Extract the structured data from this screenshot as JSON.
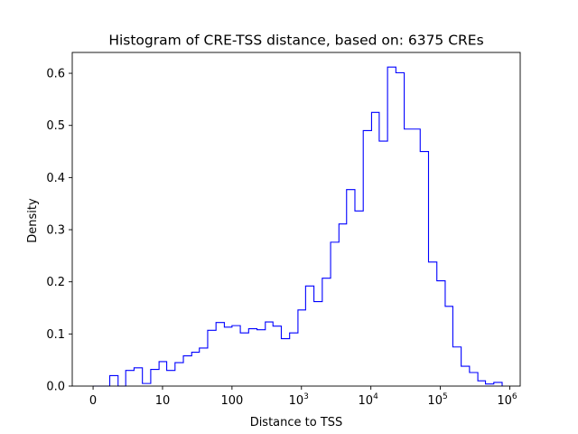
{
  "chart_data": {
    "type": "histogram",
    "title": "Histogram of CRE-TSS distance, based on: 6375 CREs",
    "xlabel": "Distance to TSS",
    "ylabel": "Density",
    "x_scale": "symlog",
    "xlim": [
      -0.3,
      6.15
    ],
    "ylim": [
      0,
      0.64
    ],
    "grid": false,
    "legend": "none",
    "line_color": "#0000ff",
    "x_ticks": [
      {
        "base": "0",
        "exp": "",
        "value": 0
      },
      {
        "base": "10",
        "exp": "",
        "value": 10
      },
      {
        "base": "100",
        "exp": "",
        "value": 100
      },
      {
        "base": "10",
        "exp": "3",
        "value": 1000
      },
      {
        "base": "10",
        "exp": "4",
        "value": 10000
      },
      {
        "base": "10",
        "exp": "5",
        "value": 100000
      },
      {
        "base": "10",
        "exp": "6",
        "value": 1000000
      }
    ],
    "y_ticks": [
      "0.0",
      "0.1",
      "0.2",
      "0.3",
      "0.4",
      "0.5",
      "0.6"
    ],
    "y_tick_values": [
      0,
      0.1,
      0.2,
      0.3,
      0.4,
      0.5,
      0.6
    ],
    "bin_edges": [
      0.0,
      0.24,
      0.36,
      0.47,
      0.59,
      0.71,
      0.83,
      0.95,
      1.06,
      1.18,
      1.3,
      1.42,
      1.53,
      1.65,
      1.77,
      1.89,
      2.0,
      2.12,
      2.24,
      2.36,
      2.48,
      2.59,
      2.71,
      2.83,
      2.95,
      3.06,
      3.18,
      3.3,
      3.42,
      3.54,
      3.65,
      3.77,
      3.89,
      4.01,
      4.12,
      4.24,
      4.36,
      4.48,
      4.59,
      4.71,
      4.83,
      4.95,
      5.07,
      5.18,
      5.3,
      5.42,
      5.54,
      5.65,
      5.77,
      5.89
    ],
    "densities": [
      0.0,
      0.02,
      0.0,
      0.03,
      0.035,
      0.005,
      0.032,
      0.047,
      0.03,
      0.045,
      0.058,
      0.065,
      0.073,
      0.107,
      0.122,
      0.113,
      0.116,
      0.102,
      0.11,
      0.108,
      0.123,
      0.115,
      0.091,
      0.102,
      0.146,
      0.192,
      0.162,
      0.207,
      0.276,
      0.311,
      0.377,
      0.336,
      0.49,
      0.525,
      0.47,
      0.612,
      0.601,
      0.493,
      0.493,
      0.45,
      0.238,
      0.202,
      0.153,
      0.075,
      0.038,
      0.026,
      0.01,
      0.004,
      0.007
    ]
  }
}
